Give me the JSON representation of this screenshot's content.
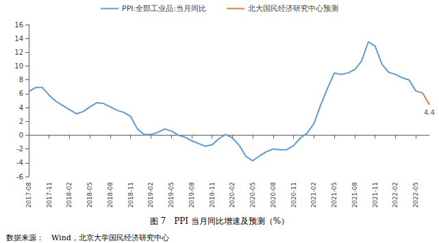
{
  "chart_data": {
    "type": "line",
    "title": "图 7　PPI 当月同比增速及预测（%）",
    "source": "数据来源：　Wind，北京大学国民经济研究中心",
    "categories": [
      "2017-08",
      null,
      null,
      "2017-11",
      null,
      null,
      "2018-02",
      null,
      null,
      "2018-05",
      null,
      null,
      "2018-08",
      null,
      null,
      "2018-11",
      null,
      null,
      "2019-02",
      null,
      null,
      "2019-05",
      null,
      null,
      "2019-08",
      null,
      null,
      "2019-11",
      null,
      null,
      "2020-02",
      null,
      null,
      "2020-05",
      null,
      null,
      "2020-08",
      null,
      null,
      "2020-11",
      null,
      null,
      "2021-02",
      null,
      null,
      "2021-05",
      null,
      null,
      "2021-08",
      null,
      null,
      "2021-11",
      null,
      null,
      "2022-02",
      null,
      null,
      "2022-05",
      null,
      null
    ],
    "series": [
      {
        "name": "PPI:全部工业品:当月同比",
        "color": "#5B9BD5",
        "values": [
          6.3,
          6.9,
          6.9,
          5.8,
          4.9,
          4.3,
          3.7,
          3.1,
          3.4,
          4.1,
          4.7,
          4.6,
          4.1,
          3.6,
          3.3,
          2.7,
          0.9,
          0.1,
          0.1,
          0.4,
          0.9,
          0.6,
          0.0,
          -0.3,
          -0.8,
          -1.2,
          -1.6,
          -1.4,
          -0.5,
          0.1,
          -0.4,
          -1.5,
          -3.1,
          -3.7,
          -3.0,
          -2.4,
          -2.0,
          -2.1,
          -2.1,
          -1.5,
          -0.4,
          0.3,
          1.7,
          4.4,
          6.8,
          9.0,
          8.8,
          9.0,
          9.5,
          10.7,
          13.5,
          12.9,
          10.3,
          9.1,
          8.8,
          8.3,
          8.0,
          6.4,
          6.1,
          null
        ]
      },
      {
        "name": "北大国民经济研究中心预测",
        "color": "#ED7D31",
        "values": [
          null,
          null,
          null,
          null,
          null,
          null,
          null,
          null,
          null,
          null,
          null,
          null,
          null,
          null,
          null,
          null,
          null,
          null,
          null,
          null,
          null,
          null,
          null,
          null,
          null,
          null,
          null,
          null,
          null,
          null,
          null,
          null,
          null,
          null,
          null,
          null,
          null,
          null,
          null,
          null,
          null,
          null,
          null,
          null,
          null,
          null,
          null,
          null,
          null,
          null,
          null,
          null,
          null,
          null,
          null,
          null,
          null,
          null,
          6.1,
          4.4
        ],
        "data_labels": true,
        "value_labels": [
          null,
          null,
          null,
          null,
          null,
          null,
          null,
          null,
          null,
          null,
          null,
          null,
          null,
          null,
          null,
          null,
          null,
          null,
          null,
          null,
          null,
          null,
          null,
          null,
          null,
          null,
          null,
          null,
          null,
          null,
          null,
          null,
          null,
          null,
          null,
          null,
          null,
          null,
          null,
          null,
          null,
          null,
          null,
          null,
          null,
          null,
          null,
          null,
          null,
          null,
          null,
          null,
          null,
          null,
          null,
          null,
          null,
          null,
          null,
          "4.4"
        ]
      }
    ],
    "ylim": [
      -6,
      16
    ],
    "yticks": [
      -6,
      -4,
      -2,
      0,
      2,
      4,
      6,
      8,
      10,
      12,
      14,
      16
    ],
    "grid": false,
    "legend": "top"
  }
}
